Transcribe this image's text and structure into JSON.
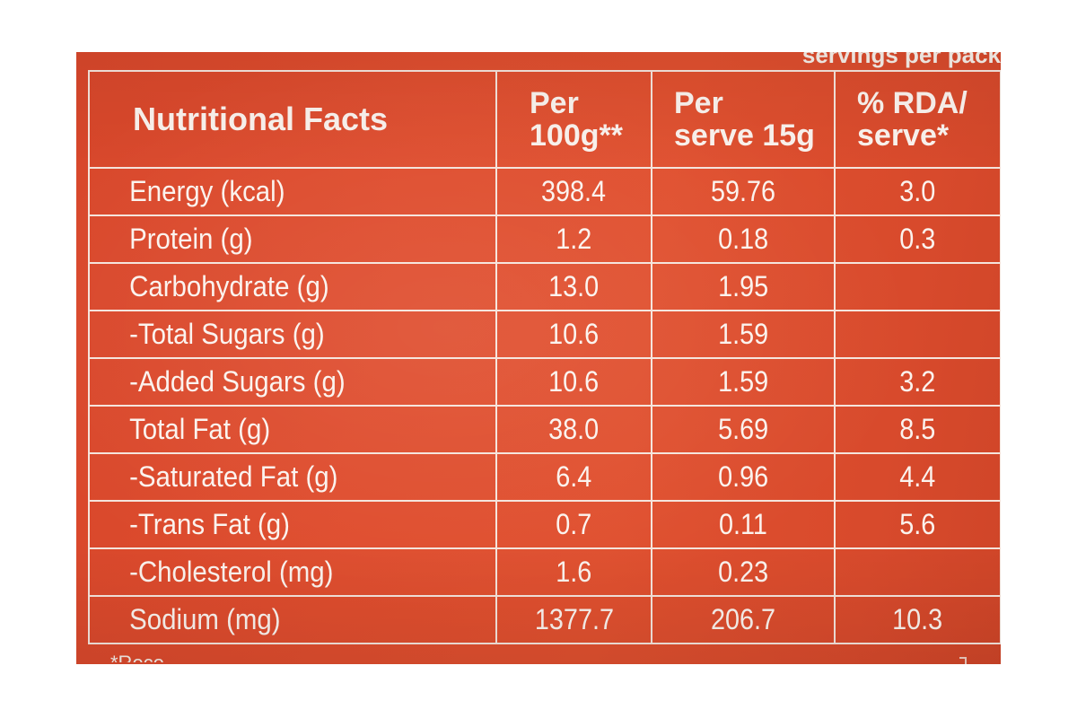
{
  "image": {
    "top_partial_text": "servings per pack",
    "bottom_partial_text": "*Reco",
    "table": {
      "headers": {
        "title": "Nutritional Facts",
        "per_100g": [
          "Per",
          "100g**"
        ],
        "per_serve": [
          "Per",
          "serve 15g"
        ],
        "rda": [
          "% RDA/",
          "serve*"
        ]
      },
      "rows": [
        {
          "nutrient": "Energy (kcal)",
          "per_100g": "398.4",
          "per_serve": "59.76",
          "rda": "3.0"
        },
        {
          "nutrient": "Protein (g)",
          "per_100g": "1.2",
          "per_serve": "0.18",
          "rda": "0.3"
        },
        {
          "nutrient": "Carbohydrate (g)",
          "per_100g": "13.0",
          "per_serve": "1.95",
          "rda": ""
        },
        {
          "nutrient": "-Total Sugars (g)",
          "per_100g": "10.6",
          "per_serve": "1.59",
          "rda": ""
        },
        {
          "nutrient": "-Added Sugars (g)",
          "per_100g": "10.6",
          "per_serve": "1.59",
          "rda": "3.2"
        },
        {
          "nutrient": "Total Fat (g)",
          "per_100g": "38.0",
          "per_serve": "5.69",
          "rda": "8.5"
        },
        {
          "nutrient": "-Saturated Fat (g)",
          "per_100g": "6.4",
          "per_serve": "0.96",
          "rda": "4.4"
        },
        {
          "nutrient": "-Trans Fat (g)",
          "per_100g": "0.7",
          "per_serve": "0.11",
          "rda": "5.6"
        },
        {
          "nutrient": "-Cholesterol (mg)",
          "per_100g": "1.6",
          "per_serve": "0.23",
          "rda": ""
        },
        {
          "nutrient": "Sodium (mg)",
          "per_100g": "1377.7",
          "per_serve": "206.7",
          "rda": "10.3"
        }
      ]
    },
    "colors": {
      "label_background": "#e0502f",
      "text_and_lines": "#fbf3ee",
      "page_background": "#ffffff"
    }
  }
}
